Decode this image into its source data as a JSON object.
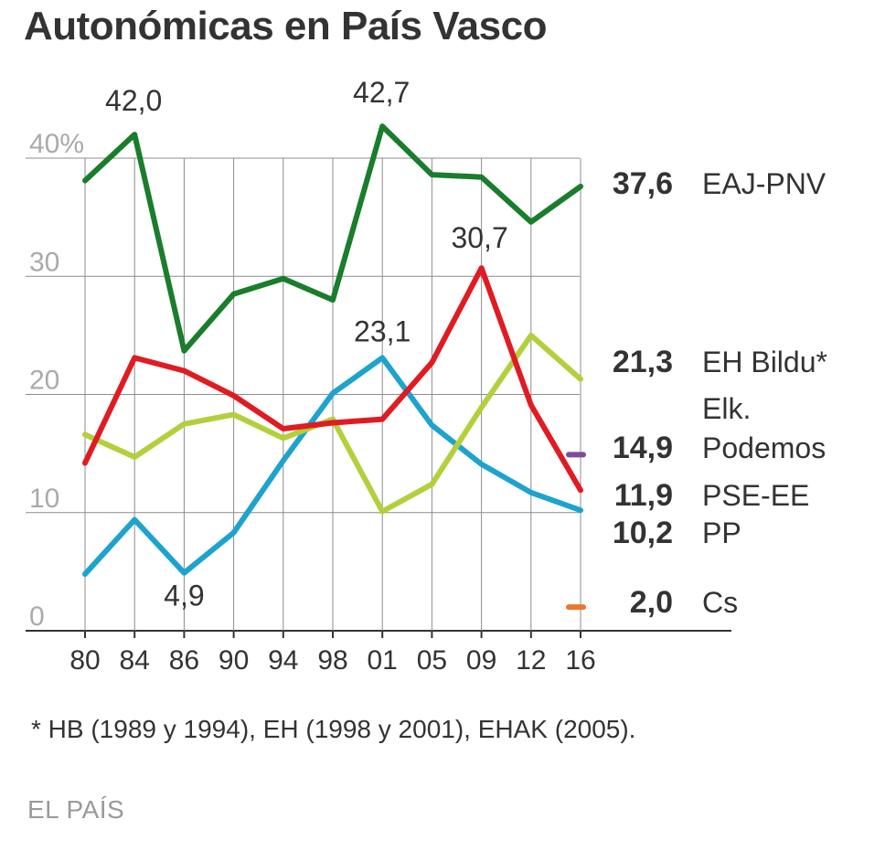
{
  "header": {
    "title": "Autonómicas en País Vasco"
  },
  "footnote": "* HB (1989  y 1994), EH (1998 y 2001), EHAK (2005).",
  "source": "EL PAÍS",
  "chart_data": {
    "type": "line",
    "title": "Autonómicas en País Vasco",
    "xlabel": "",
    "ylabel": "",
    "categories": [
      "80",
      "84",
      "86",
      "90",
      "94",
      "98",
      "01",
      "05",
      "09",
      "12",
      "16"
    ],
    "ylim": [
      0,
      40
    ],
    "yticks": [
      {
        "value": 0,
        "label": "0"
      },
      {
        "value": 10,
        "label": "10"
      },
      {
        "value": 20,
        "label": "20"
      },
      {
        "value": 30,
        "label": "30"
      },
      {
        "value": 40,
        "label": "40%"
      }
    ],
    "grid": true,
    "series": [
      {
        "name": "EAJ-PNV",
        "color": "#1a7d2c",
        "values": [
          38.1,
          42.0,
          23.7,
          28.5,
          29.8,
          28.0,
          42.7,
          38.6,
          38.4,
          34.6,
          37.6
        ],
        "end_label": "37,6"
      },
      {
        "name": "EH Bildu*",
        "color": "#b4cf3c",
        "values": [
          16.6,
          14.7,
          17.5,
          18.3,
          16.3,
          17.9,
          10.1,
          12.4,
          18.9,
          25.0,
          21.3
        ],
        "end_label": "21,3"
      },
      {
        "name": "PSE-EE",
        "color": "#e01b22",
        "values": [
          14.2,
          23.1,
          22.0,
          19.9,
          17.1,
          17.6,
          17.9,
          22.7,
          30.7,
          19.1,
          11.9
        ],
        "end_label": "11,9"
      },
      {
        "name": "PP",
        "color": "#1ea3ce",
        "values": [
          4.8,
          9.4,
          4.9,
          8.3,
          14.4,
          20.1,
          23.1,
          17.4,
          14.1,
          11.7,
          10.2
        ],
        "end_label": "10,2"
      },
      {
        "name": "Podemos",
        "color": "#7d4a9c",
        "values": [
          null,
          null,
          null,
          null,
          null,
          null,
          null,
          null,
          null,
          null,
          14.9
        ],
        "end_label": "14,9"
      },
      {
        "name": "Cs",
        "color": "#e8782e",
        "values": [
          null,
          null,
          null,
          null,
          null,
          null,
          null,
          null,
          null,
          null,
          2.0
        ],
        "end_label": "2,0"
      }
    ],
    "extra_legend_text": "Elk.",
    "annotations": [
      {
        "text": "42,0",
        "x": "84",
        "value": 42.0
      },
      {
        "text": "42,7",
        "x": "01",
        "value": 42.7
      },
      {
        "text": "30,7",
        "x": "09",
        "value": 30.7
      },
      {
        "text": "23,1",
        "x": "01",
        "value": 23.1
      },
      {
        "text": "4,9",
        "x": "86",
        "value": 4.9
      }
    ]
  }
}
